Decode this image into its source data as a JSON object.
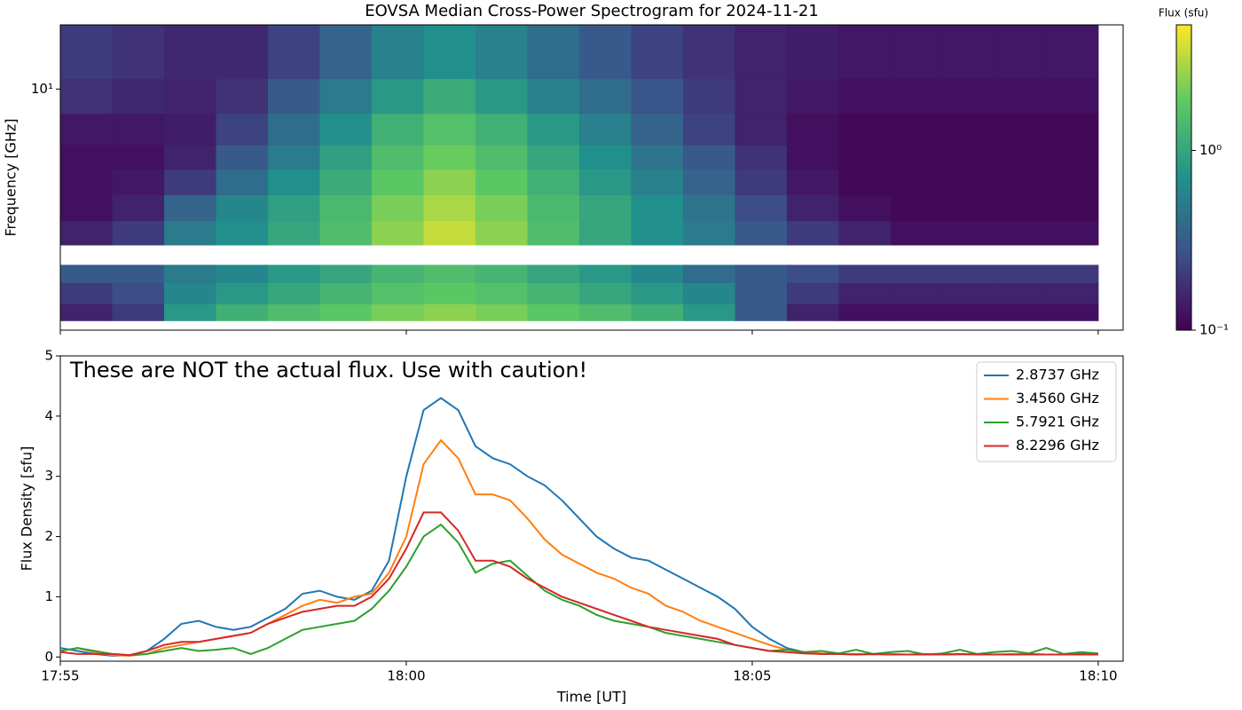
{
  "chart_data": [
    {
      "type": "heatmap",
      "title": "EOVSA Median Cross-Power Spectrogram for 2024-11-21",
      "y_label": "Frequency [GHz]",
      "y_scale": "log",
      "ylim": [
        1.1,
        18
      ],
      "yticks": [
        {
          "value": 10,
          "label": "10¹"
        }
      ],
      "colorbar_label": "Flux (sfu)",
      "color_scale": "log",
      "colormap": "viridis",
      "zlim": [
        0.1,
        5
      ],
      "zticks": [
        {
          "value": 1,
          "label": "10⁰"
        },
        {
          "value": 0.1,
          "label": "10⁻¹"
        }
      ],
      "x_edges": [
        1075,
        1075.75,
        1076.5,
        1077.25,
        1078,
        1078.75,
        1079.5,
        1080.25,
        1081,
        1081.75,
        1082.5,
        1083.25,
        1084,
        1084.75,
        1085.5,
        1086.25,
        1087,
        1087.75,
        1088.5,
        1089.25,
        1090
      ],
      "y_edges": [
        1.2,
        1.4,
        1.7,
        2.0,
        2.4,
        3.0,
        3.8,
        4.8,
        6.0,
        8.0,
        11,
        18
      ],
      "z": [
        [
          0.15,
          0.2,
          0.8,
          1.2,
          1.5,
          1.8,
          2.2,
          2.5,
          2.2,
          1.8,
          1.5,
          1.2,
          0.8,
          0.3,
          0.15,
          0.12,
          0.12,
          0.12,
          0.12,
          0.12
        ],
        [
          0.2,
          0.25,
          0.6,
          0.8,
          1.0,
          1.3,
          1.6,
          1.8,
          1.6,
          1.3,
          1.0,
          0.8,
          0.6,
          0.3,
          0.2,
          0.15,
          0.15,
          0.15,
          0.15,
          0.15
        ],
        [
          0.3,
          0.3,
          0.5,
          0.6,
          0.8,
          1.0,
          1.3,
          1.5,
          1.3,
          1.0,
          0.8,
          0.6,
          0.4,
          0.3,
          0.25,
          0.2,
          0.2,
          0.2,
          0.2,
          0.2
        ],
        [
          null,
          null,
          null,
          null,
          null,
          null,
          null,
          null,
          null,
          null,
          null,
          null,
          null,
          null,
          null,
          null,
          null,
          null,
          null,
          null
        ],
        [
          0.15,
          0.2,
          0.5,
          0.7,
          1.0,
          1.5,
          2.5,
          3.5,
          2.5,
          1.5,
          1.0,
          0.7,
          0.5,
          0.3,
          0.2,
          0.15,
          0.12,
          0.12,
          0.12,
          0.12
        ],
        [
          0.12,
          0.15,
          0.35,
          0.6,
          0.9,
          1.4,
          2.2,
          3.0,
          2.2,
          1.4,
          1.0,
          0.7,
          0.45,
          0.25,
          0.15,
          0.12,
          0.11,
          0.11,
          0.11,
          0.11
        ],
        [
          0.12,
          0.13,
          0.2,
          0.4,
          0.7,
          1.1,
          1.8,
          2.5,
          1.8,
          1.2,
          0.8,
          0.55,
          0.35,
          0.2,
          0.13,
          0.11,
          0.11,
          0.11,
          0.11,
          0.11
        ],
        [
          0.12,
          0.12,
          0.15,
          0.3,
          0.5,
          0.9,
          1.5,
          2.0,
          1.5,
          1.0,
          0.7,
          0.45,
          0.3,
          0.18,
          0.12,
          0.11,
          0.11,
          0.11,
          0.11,
          0.11
        ],
        [
          0.13,
          0.13,
          0.14,
          0.22,
          0.4,
          0.7,
          1.2,
          1.6,
          1.2,
          0.8,
          0.55,
          0.35,
          0.22,
          0.15,
          0.12,
          0.11,
          0.11,
          0.11,
          0.11,
          0.11
        ],
        [
          0.18,
          0.16,
          0.15,
          0.18,
          0.3,
          0.5,
          0.8,
          1.1,
          0.8,
          0.55,
          0.4,
          0.28,
          0.2,
          0.15,
          0.13,
          0.12,
          0.12,
          0.12,
          0.12,
          0.12
        ],
        [
          0.2,
          0.18,
          0.16,
          0.16,
          0.22,
          0.35,
          0.55,
          0.7,
          0.55,
          0.4,
          0.3,
          0.22,
          0.18,
          0.15,
          0.14,
          0.13,
          0.13,
          0.13,
          0.13,
          0.13
        ]
      ]
    },
    {
      "type": "line",
      "annotation": "These are NOT the actual flux. Use with caution!",
      "x_label": "Time [UT]",
      "y_label": "Flux Density [sfu]",
      "xlim": [
        1075,
        1090.36
      ],
      "xticks": [
        {
          "value": 1075,
          "label": "17:55"
        },
        {
          "value": 1080,
          "label": "18:00"
        },
        {
          "value": 1085,
          "label": "18:05"
        },
        {
          "value": 1090,
          "label": "18:10"
        }
      ],
      "ylim": [
        -0.07,
        5
      ],
      "yticks": [
        0,
        1,
        2,
        3,
        4,
        5
      ],
      "legend": "upper right",
      "x": [
        1075,
        1075.25,
        1075.5,
        1075.75,
        1076,
        1076.25,
        1076.5,
        1076.75,
        1077,
        1077.25,
        1077.5,
        1077.75,
        1078,
        1078.25,
        1078.5,
        1078.75,
        1079,
        1079.25,
        1079.5,
        1079.75,
        1080,
        1080.25,
        1080.5,
        1080.75,
        1081,
        1081.25,
        1081.5,
        1081.75,
        1082,
        1082.25,
        1082.5,
        1082.75,
        1083,
        1083.25,
        1083.5,
        1083.75,
        1084,
        1084.25,
        1084.5,
        1084.75,
        1085,
        1085.25,
        1085.5,
        1085.75,
        1086,
        1086.25,
        1086.5,
        1086.75,
        1087,
        1087.25,
        1087.5,
        1087.75,
        1088,
        1088.25,
        1088.5,
        1088.75,
        1089,
        1089.25,
        1089.5,
        1089.75,
        1090
      ],
      "series": [
        {
          "name": "2.8737 GHz",
          "color": "#1f77b4",
          "values": [
            0.15,
            0.1,
            0.05,
            0.02,
            0.03,
            0.1,
            0.3,
            0.55,
            0.6,
            0.5,
            0.45,
            0.5,
            0.65,
            0.8,
            1.05,
            1.1,
            1.0,
            0.95,
            1.1,
            1.6,
            3.0,
            4.1,
            4.3,
            4.1,
            3.5,
            3.3,
            3.2,
            3.0,
            2.85,
            2.6,
            2.3,
            2.0,
            1.8,
            1.65,
            1.6,
            1.45,
            1.3,
            1.15,
            1.0,
            0.8,
            0.5,
            0.3,
            0.15,
            0.08,
            0.05,
            0.05,
            0.04,
            0.05,
            0.04,
            0.04,
            0.05,
            0.04,
            0.04,
            0.05,
            0.04,
            0.04,
            0.05,
            0.04,
            0.04,
            0.05,
            0.04
          ]
        },
        {
          "name": "3.4560 GHz",
          "color": "#ff7f0e",
          "values": [
            0.1,
            0.15,
            0.08,
            0.03,
            0.02,
            0.05,
            0.15,
            0.2,
            0.25,
            0.3,
            0.35,
            0.4,
            0.55,
            0.7,
            0.85,
            0.95,
            0.9,
            1.0,
            1.05,
            1.4,
            2.0,
            3.2,
            3.6,
            3.3,
            2.7,
            2.7,
            2.6,
            2.3,
            1.95,
            1.7,
            1.55,
            1.4,
            1.3,
            1.15,
            1.05,
            0.85,
            0.75,
            0.6,
            0.5,
            0.4,
            0.3,
            0.2,
            0.12,
            0.08,
            0.06,
            0.05,
            0.05,
            0.04,
            0.05,
            0.04,
            0.04,
            0.05,
            0.04,
            0.04,
            0.04,
            0.05,
            0.04,
            0.04,
            0.04,
            0.04,
            0.04
          ]
        },
        {
          "name": "5.7921 GHz",
          "color": "#2ca02c",
          "values": [
            0.1,
            0.15,
            0.1,
            0.05,
            0.03,
            0.05,
            0.1,
            0.15,
            0.1,
            0.12,
            0.15,
            0.05,
            0.15,
            0.3,
            0.45,
            0.5,
            0.55,
            0.6,
            0.8,
            1.1,
            1.5,
            2.0,
            2.2,
            1.9,
            1.4,
            1.55,
            1.6,
            1.35,
            1.1,
            0.95,
            0.85,
            0.7,
            0.6,
            0.55,
            0.5,
            0.4,
            0.35,
            0.3,
            0.25,
            0.2,
            0.15,
            0.1,
            0.12,
            0.08,
            0.1,
            0.06,
            0.12,
            0.05,
            0.08,
            0.1,
            0.04,
            0.06,
            0.12,
            0.05,
            0.08,
            0.1,
            0.06,
            0.15,
            0.05,
            0.08,
            0.06
          ]
        },
        {
          "name": "8.2296 GHz",
          "color": "#d62728",
          "values": [
            0.08,
            0.05,
            0.05,
            0.05,
            0.03,
            0.1,
            0.2,
            0.25,
            0.25,
            0.3,
            0.35,
            0.4,
            0.55,
            0.65,
            0.75,
            0.8,
            0.85,
            0.85,
            1.0,
            1.3,
            1.8,
            2.4,
            2.4,
            2.1,
            1.6,
            1.6,
            1.5,
            1.3,
            1.15,
            1.0,
            0.9,
            0.8,
            0.7,
            0.6,
            0.5,
            0.45,
            0.4,
            0.35,
            0.3,
            0.2,
            0.15,
            0.1,
            0.08,
            0.06,
            0.05,
            0.05,
            0.04,
            0.05,
            0.04,
            0.04,
            0.04,
            0.04,
            0.05,
            0.04,
            0.04,
            0.04,
            0.04,
            0.04,
            0.04,
            0.04,
            0.04
          ]
        }
      ]
    }
  ]
}
